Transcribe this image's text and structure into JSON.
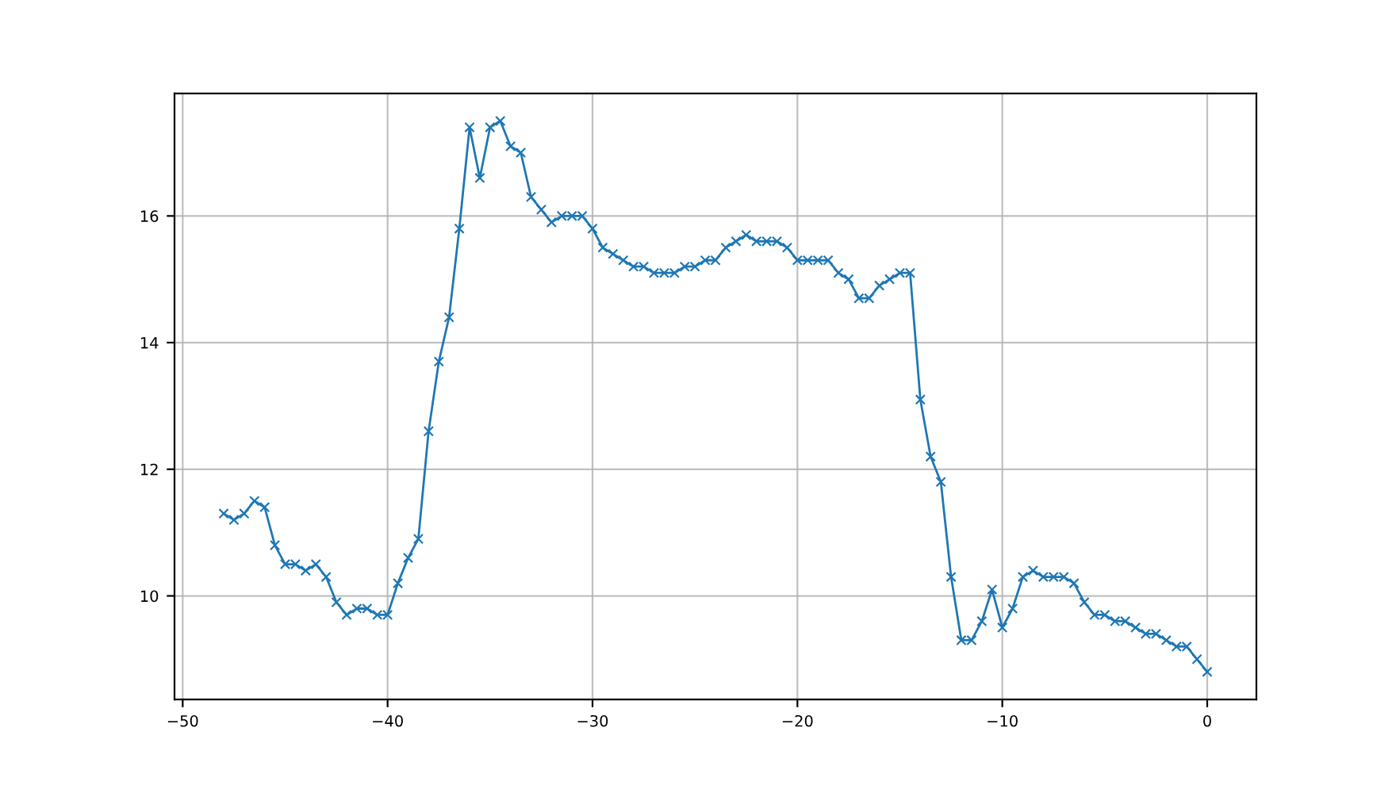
{
  "chart_data": {
    "type": "line",
    "x": [
      -48,
      -47.5,
      -47,
      -46.5,
      -46,
      -45.5,
      -45,
      -44.5,
      -44,
      -43.5,
      -43,
      -42.5,
      -42,
      -41.5,
      -41,
      -40.5,
      -40,
      -39.5,
      -39,
      -38.5,
      -38,
      -37.5,
      -37,
      -36.5,
      -36,
      -35.5,
      -35,
      -34.5,
      -34,
      -33.5,
      -33,
      -32.5,
      -32,
      -31.5,
      -31,
      -30.5,
      -30,
      -29.5,
      -29,
      -28.5,
      -28,
      -27.5,
      -27,
      -26.5,
      -26,
      -25.5,
      -25,
      -24.5,
      -24,
      -23.5,
      -23,
      -22.5,
      -22,
      -21.5,
      -21,
      -20.5,
      -20,
      -19.5,
      -19,
      -18.5,
      -18,
      -17.5,
      -17,
      -16.5,
      -16,
      -15.5,
      -15,
      -14.5,
      -14,
      -13.5,
      -13,
      -12.5,
      -12,
      -11.5,
      -11,
      -10.5,
      -10,
      -9.5,
      -9,
      -8.5,
      -8,
      -7.5,
      -7,
      -6.5,
      -6,
      -5.5,
      -5,
      -4.5,
      -4,
      -3.5,
      -3,
      -2.5,
      -2,
      -1.5,
      -1,
      -0.5,
      0
    ],
    "series": [
      {
        "color": "#1f77b4",
        "values": [
          11.3,
          11.2,
          11.3,
          11.5,
          11.4,
          10.8,
          10.5,
          10.5,
          10.4,
          10.5,
          10.3,
          9.9,
          9.7,
          9.8,
          9.8,
          9.7,
          9.7,
          10.2,
          10.6,
          10.9,
          12.6,
          13.7,
          14.4,
          15.8,
          17.4,
          16.6,
          17.4,
          17.5,
          17.1,
          17.0,
          16.3,
          16.1,
          15.9,
          16.0,
          16.0,
          16.0,
          15.8,
          15.5,
          15.4,
          15.3,
          15.2,
          15.2,
          15.1,
          15.1,
          15.1,
          15.2,
          15.2,
          15.3,
          15.3,
          15.5,
          15.6,
          15.7,
          15.6,
          15.6,
          15.6,
          15.5,
          15.3,
          15.3,
          15.3,
          15.3,
          15.1,
          15.0,
          14.7,
          14.7,
          14.9,
          15.0,
          15.1,
          15.1,
          13.1,
          12.2,
          11.8,
          10.3,
          9.3,
          9.3,
          9.6,
          10.1,
          9.5,
          9.8,
          10.3,
          10.4,
          10.3,
          10.3,
          10.3,
          10.2,
          9.9,
          9.7,
          9.7,
          9.6,
          9.6,
          9.5,
          9.4,
          9.4,
          9.3,
          9.2,
          9.2,
          9.0,
          8.8
        ]
      }
    ],
    "xlim": [
      -50.4,
      2.4
    ],
    "ylim": [
      8.365,
      17.935
    ],
    "xticks": [
      {
        "value": -50,
        "label": "−50"
      },
      {
        "value": -40,
        "label": "−40"
      },
      {
        "value": -30,
        "label": "−30"
      },
      {
        "value": -20,
        "label": "−20"
      },
      {
        "value": -10,
        "label": "−10"
      },
      0
    ],
    "yticks": [
      10,
      12,
      14,
      16
    ],
    "grid": true,
    "marker": "cross",
    "line_style": "solid"
  }
}
